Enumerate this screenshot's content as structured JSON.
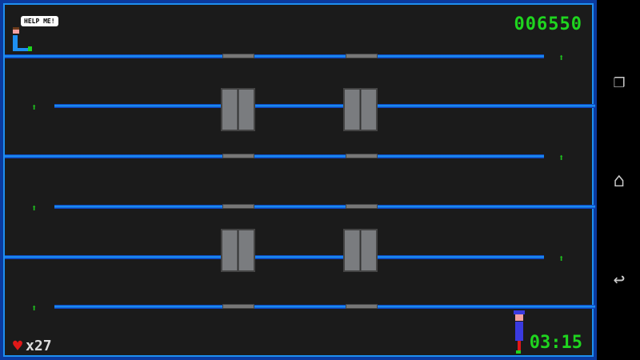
{
  "hud": {
    "score": "006550",
    "timer": "03:15",
    "lives": "x27",
    "speech": "HELP ME!"
  },
  "colors": {
    "floor": "#1ea0ff",
    "border": "#0b3a9e",
    "hud_green": "#1fd51f",
    "heart": "#e01818"
  },
  "icons": {
    "up_arrow": "up-arrow-icon",
    "heart": "heart-icon",
    "recent": "recent-apps-icon",
    "home": "home-icon",
    "back": "back-icon"
  }
}
